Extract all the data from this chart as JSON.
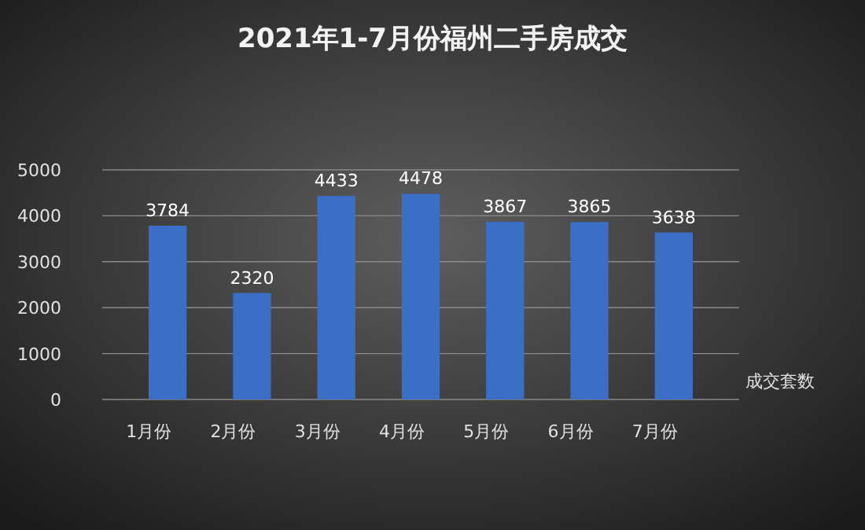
{
  "chart_data": {
    "type": "bar",
    "title": "2021年1-7月份福州二手房成交",
    "categories": [
      "1月份",
      "2月份",
      "3月份",
      "4月份",
      "5月份",
      "6月份",
      "7月份"
    ],
    "values": [
      3784,
      2320,
      4433,
      4478,
      3867,
      3865,
      3638
    ],
    "color": "#3b6fc6",
    "ylim": [
      0,
      5000
    ],
    "yticks": [
      0,
      1000,
      2000,
      3000,
      4000,
      5000
    ],
    "grid": "y",
    "data_labels": true,
    "xlabel": "成交套数"
  }
}
